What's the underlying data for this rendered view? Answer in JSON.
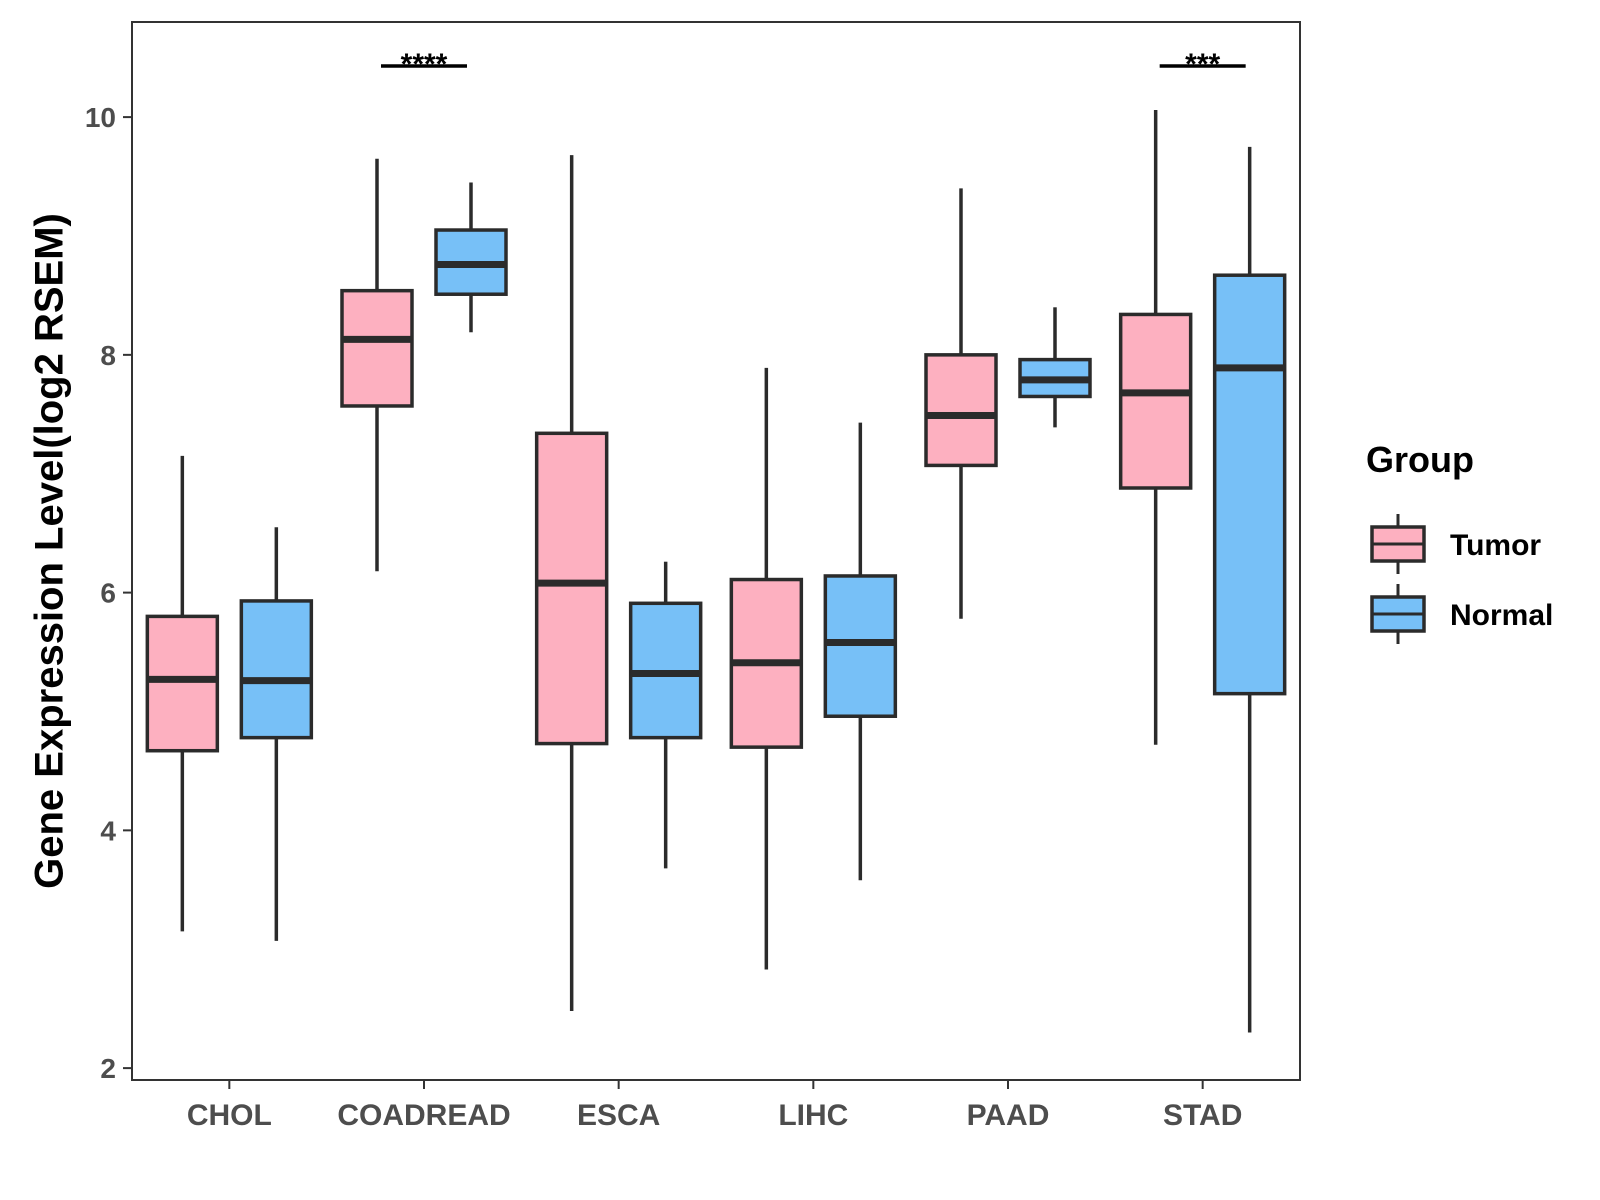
{
  "chart_data": {
    "type": "boxplot",
    "title": "",
    "xlabel": "",
    "ylabel": "Gene Expression Level(log2 RSEM)",
    "ylim": [
      1.9,
      10.8
    ],
    "yticks": [
      2,
      4,
      6,
      8,
      10
    ],
    "categories": [
      "CHOL",
      "COADREAD",
      "ESCA",
      "LIHC",
      "PAAD",
      "STAD"
    ],
    "legend": {
      "title": "Group",
      "position": "right"
    },
    "series": [
      {
        "name": "Tumor",
        "color": "#FDB0C0",
        "boxes": [
          {
            "whisker_low": 3.15,
            "q1": 4.67,
            "median": 5.27,
            "q3": 5.8,
            "whisker_high": 7.15
          },
          {
            "whisker_low": 6.18,
            "q1": 7.57,
            "median": 8.13,
            "q3": 8.54,
            "whisker_high": 9.65
          },
          {
            "whisker_low": 2.48,
            "q1": 4.73,
            "median": 6.08,
            "q3": 7.34,
            "whisker_high": 9.68
          },
          {
            "whisker_low": 2.83,
            "q1": 4.7,
            "median": 5.41,
            "q3": 6.11,
            "whisker_high": 7.89
          },
          {
            "whisker_low": 5.78,
            "q1": 7.07,
            "median": 7.49,
            "q3": 8.0,
            "whisker_high": 9.4
          },
          {
            "whisker_low": 4.72,
            "q1": 6.88,
            "median": 7.68,
            "q3": 8.34,
            "whisker_high": 10.06
          }
        ]
      },
      {
        "name": "Normal",
        "color": "#77C0F7",
        "boxes": [
          {
            "whisker_low": 3.07,
            "q1": 4.78,
            "median": 5.26,
            "q3": 5.93,
            "whisker_high": 6.55
          },
          {
            "whisker_low": 8.19,
            "q1": 8.51,
            "median": 8.76,
            "q3": 9.05,
            "whisker_high": 9.45
          },
          {
            "whisker_low": 3.68,
            "q1": 4.78,
            "median": 5.32,
            "q3": 5.91,
            "whisker_high": 6.26
          },
          {
            "whisker_low": 3.58,
            "q1": 4.96,
            "median": 5.58,
            "q3": 6.14,
            "whisker_high": 7.43
          },
          {
            "whisker_low": 7.39,
            "q1": 7.65,
            "median": 7.79,
            "q3": 7.96,
            "whisker_high": 8.4
          },
          {
            "whisker_low": 2.3,
            "q1": 5.15,
            "median": 7.89,
            "q3": 8.67,
            "whisker_high": 9.75
          }
        ]
      }
    ],
    "significance": [
      {
        "category": "COADREAD",
        "label": "****",
        "y": 10.43
      },
      {
        "category": "STAD",
        "label": "***",
        "y": 10.43
      }
    ],
    "colors": {
      "outline": "#2b2b2b",
      "panel_border": "#333333",
      "tick": "#333333"
    }
  }
}
